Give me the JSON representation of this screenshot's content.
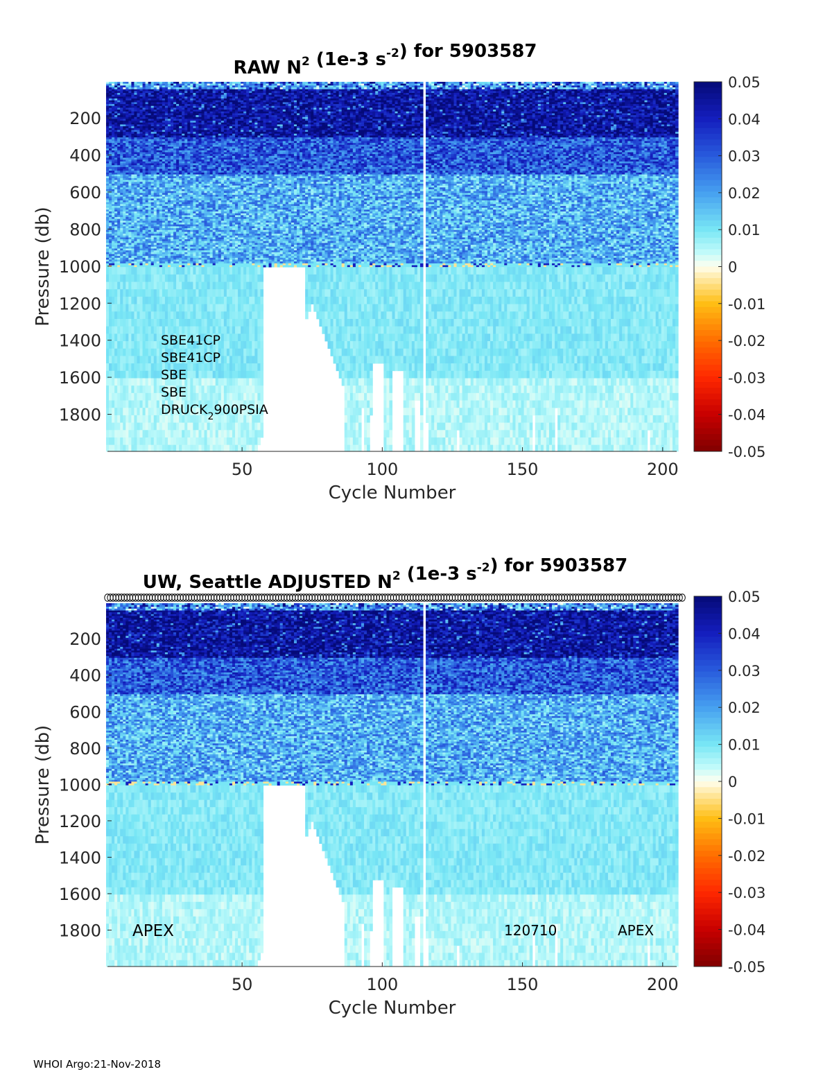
{
  "footer": "WHOI Argo:21-Nov-2018",
  "colorbar": {
    "ticks": [
      "0.05",
      "0.04",
      "0.03",
      "0.02",
      "0.01",
      "0",
      "-0.01",
      "-0.02",
      "-0.03",
      "-0.04",
      "-0.05"
    ],
    "range": [
      -0.05,
      0.05
    ],
    "colormap": "jet-white-center"
  },
  "chart_data": [
    {
      "type": "heatmap",
      "title": {
        "pre": "RAW N",
        "sup1": "2",
        "mid": " (1e-3 s",
        "sup2": "-2",
        "post": ") for 5903587"
      },
      "xlabel": "Cycle Number",
      "ylabel": "Pressure (db)",
      "xlim": [
        2,
        205
      ],
      "ylim": [
        2000,
        5
      ],
      "y_reversed": true,
      "xticks": [
        "50",
        "100",
        "150",
        "200"
      ],
      "yticks": [
        "200",
        "400",
        "600",
        "800",
        "1000",
        "1200",
        "1400",
        "1600",
        "1800"
      ],
      "gap_cycle": 115,
      "annotations": [
        "SBE41CP",
        "SBE41CP",
        "SBE",
        "SBE"
      ],
      "druck": {
        "pre": "DRUCK",
        "sub": "2",
        "post": "900PSIA"
      }
    },
    {
      "type": "heatmap",
      "title": {
        "pre": "UW, Seattle  ADJUSTED N",
        "sup1": "2",
        "mid": " (1e-3 s",
        "sup2": "-2",
        "post": ") for 5903587"
      },
      "xlabel": "Cycle Number",
      "ylabel": "Pressure (db)",
      "xlim": [
        2,
        205
      ],
      "ylim": [
        2000,
        5
      ],
      "y_reversed": true,
      "xticks": [
        "50",
        "100",
        "150",
        "200"
      ],
      "yticks": [
        "200",
        "400",
        "600",
        "800",
        "1000",
        "1200",
        "1400",
        "1600",
        "1800"
      ],
      "gap_cycle": 115,
      "bottom_labels": [
        "APEX",
        "120710",
        "APEX"
      ],
      "marker_row": "circles"
    }
  ]
}
